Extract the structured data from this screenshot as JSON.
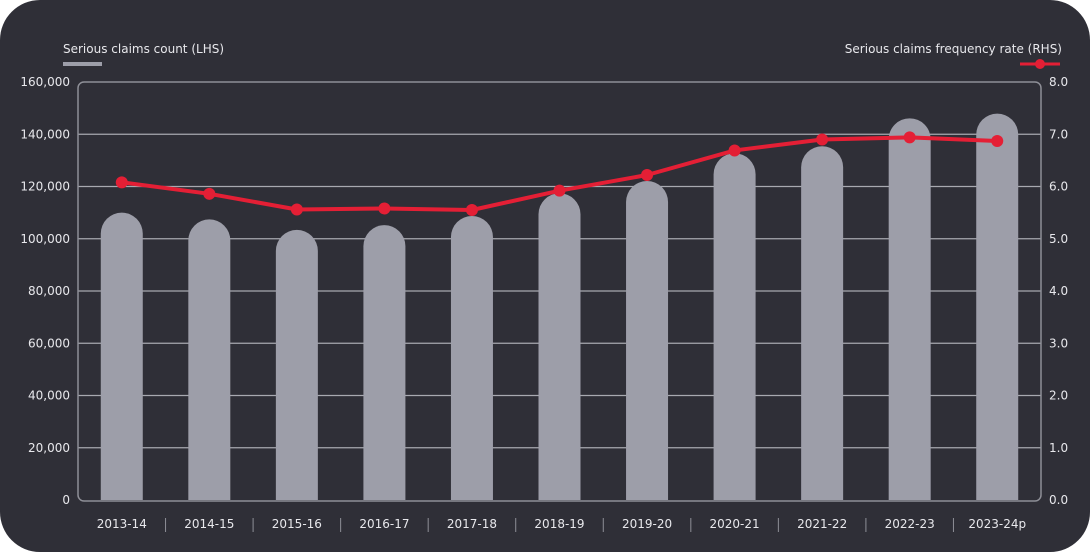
{
  "chart_data": {
    "type": "bar+line",
    "categories": [
      "2013-14",
      "2014-15",
      "2015-16",
      "2016-17",
      "2017-18",
      "2018-19",
      "2019-20",
      "2020-21",
      "2021-22",
      "2022-23",
      "2023-24p"
    ],
    "series": [
      {
        "name": "Serious claims count (LHS)",
        "type": "bar",
        "axis": "left",
        "color": "#9d9ea9",
        "values": [
          110000,
          107400,
          103400,
          105200,
          108700,
          117400,
          122100,
          132700,
          135400,
          146100,
          147900
        ]
      },
      {
        "name": "Serious claims frequency rate (RHS)",
        "type": "line",
        "axis": "right",
        "color": "#e41f35",
        "values": [
          6.08,
          5.86,
          5.56,
          5.58,
          5.55,
          5.92,
          6.22,
          6.69,
          6.9,
          6.94,
          6.87
        ]
      }
    ],
    "left_axis": {
      "range": [
        0,
        160000
      ],
      "ticks": [
        "0",
        "20,000",
        "40,000",
        "60,000",
        "80,000",
        "100,000",
        "120,000",
        "140,000",
        "160,000"
      ]
    },
    "right_axis": {
      "range": [
        0,
        8
      ],
      "ticks": [
        "0.0",
        "1.0",
        "2.0",
        "3.0",
        "4.0",
        "5.0",
        "6.0",
        "7.0",
        "8.0"
      ]
    },
    "grid": true,
    "legend": {
      "left": "Serious claims count (LHS)",
      "right": "Serious claims frequency rate (RHS)"
    }
  }
}
